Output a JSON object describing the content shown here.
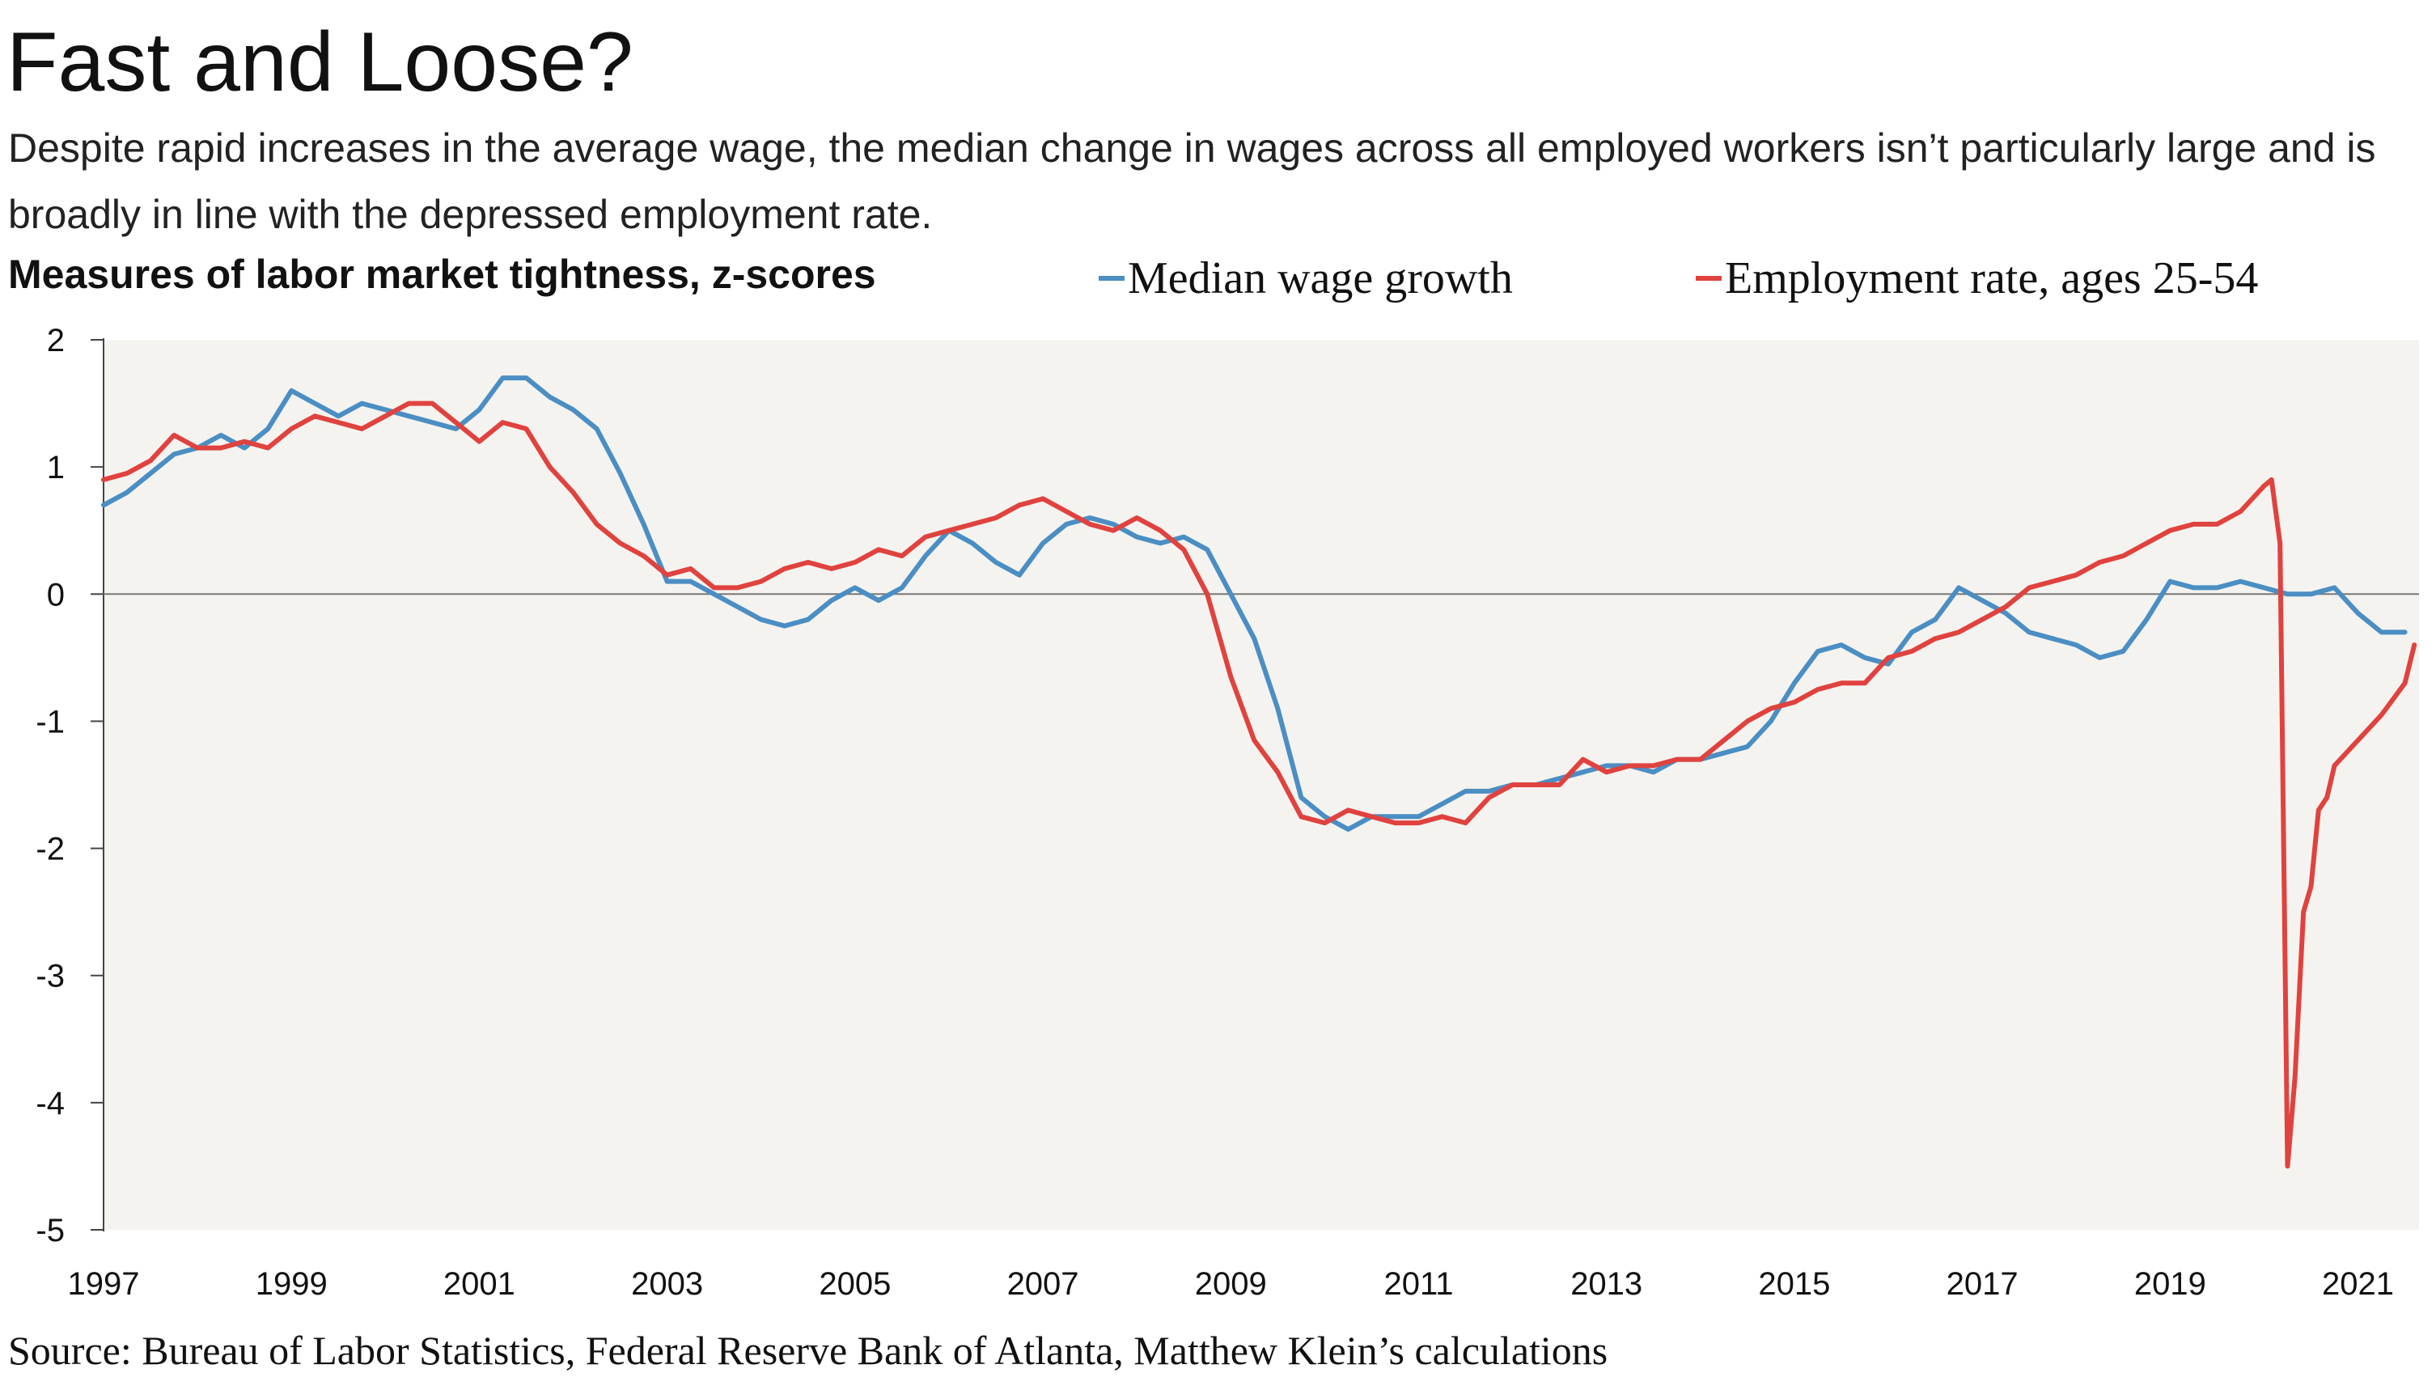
{
  "title": "Fast and Loose?",
  "subtitle": "Despite rapid increases in the average wage, the median change in wages across all employed workers isn’t particularly large and is broadly in line with the depressed employment rate.",
  "source": "Source: Bureau of Labor Statistics, Federal Reserve Bank of Atlanta, Matthew Klein’s calculations",
  "colors": {
    "plot_background": "#f5f3ef",
    "median_wage": "#4a8ec4",
    "employment": "#e0433f",
    "axis": "#444444"
  },
  "chart_data": {
    "type": "line",
    "title": "Measures of labor market tightness, z-scores",
    "xlabel": "",
    "ylabel": "",
    "xlim": [
      1997.0,
      2021.65
    ],
    "ylim": [
      -5,
      2
    ],
    "yticks": [
      2,
      1,
      0,
      -1,
      -2,
      -3,
      -4,
      -5
    ],
    "ytick_labels": [
      "2",
      "1",
      "0",
      "-1",
      "-2",
      "-3",
      "-4",
      "-5"
    ],
    "xticks": [
      1997,
      1999,
      2001,
      2003,
      2005,
      2007,
      2009,
      2011,
      2013,
      2015,
      2017,
      2019,
      2021
    ],
    "xtick_labels": [
      "1997",
      "1999",
      "2001",
      "2003",
      "2005",
      "2007",
      "2009",
      "2011",
      "2013",
      "2015",
      "2017",
      "2019",
      "2021"
    ],
    "grid": false,
    "legend": "top",
    "series": [
      {
        "name": "Median wage growth",
        "color": "#4a8ec4",
        "points": [
          [
            1997.0,
            0.7
          ],
          [
            1997.25,
            0.8
          ],
          [
            1997.5,
            0.95
          ],
          [
            1997.75,
            1.1
          ],
          [
            1998.0,
            1.15
          ],
          [
            1998.25,
            1.25
          ],
          [
            1998.5,
            1.15
          ],
          [
            1998.75,
            1.3
          ],
          [
            1999.0,
            1.6
          ],
          [
            1999.25,
            1.5
          ],
          [
            1999.5,
            1.4
          ],
          [
            1999.75,
            1.5
          ],
          [
            2000.0,
            1.45
          ],
          [
            2000.25,
            1.4
          ],
          [
            2000.5,
            1.35
          ],
          [
            2000.75,
            1.3
          ],
          [
            2001.0,
            1.45
          ],
          [
            2001.25,
            1.7
          ],
          [
            2001.5,
            1.7
          ],
          [
            2001.75,
            1.55
          ],
          [
            2002.0,
            1.45
          ],
          [
            2002.25,
            1.3
          ],
          [
            2002.5,
            0.95
          ],
          [
            2002.75,
            0.55
          ],
          [
            2003.0,
            0.1
          ],
          [
            2003.25,
            0.1
          ],
          [
            2003.5,
            0.0
          ],
          [
            2003.75,
            -0.1
          ],
          [
            2004.0,
            -0.2
          ],
          [
            2004.25,
            -0.25
          ],
          [
            2004.5,
            -0.2
          ],
          [
            2004.75,
            -0.05
          ],
          [
            2005.0,
            0.05
          ],
          [
            2005.25,
            -0.05
          ],
          [
            2005.5,
            0.05
          ],
          [
            2005.75,
            0.3
          ],
          [
            2006.0,
            0.5
          ],
          [
            2006.25,
            0.4
          ],
          [
            2006.5,
            0.25
          ],
          [
            2006.75,
            0.15
          ],
          [
            2007.0,
            0.4
          ],
          [
            2007.25,
            0.55
          ],
          [
            2007.5,
            0.6
          ],
          [
            2007.75,
            0.55
          ],
          [
            2008.0,
            0.45
          ],
          [
            2008.25,
            0.4
          ],
          [
            2008.5,
            0.45
          ],
          [
            2008.75,
            0.35
          ],
          [
            2009.0,
            0.0
          ],
          [
            2009.25,
            -0.35
          ],
          [
            2009.5,
            -0.9
          ],
          [
            2009.75,
            -1.6
          ],
          [
            2010.0,
            -1.75
          ],
          [
            2010.25,
            -1.85
          ],
          [
            2010.5,
            -1.75
          ],
          [
            2010.75,
            -1.75
          ],
          [
            2011.0,
            -1.75
          ],
          [
            2011.25,
            -1.65
          ],
          [
            2011.5,
            -1.55
          ],
          [
            2011.75,
            -1.55
          ],
          [
            2012.0,
            -1.5
          ],
          [
            2012.25,
            -1.5
          ],
          [
            2012.5,
            -1.45
          ],
          [
            2012.75,
            -1.4
          ],
          [
            2013.0,
            -1.35
          ],
          [
            2013.25,
            -1.35
          ],
          [
            2013.5,
            -1.4
          ],
          [
            2013.75,
            -1.3
          ],
          [
            2014.0,
            -1.3
          ],
          [
            2014.25,
            -1.25
          ],
          [
            2014.5,
            -1.2
          ],
          [
            2014.75,
            -1.0
          ],
          [
            2015.0,
            -0.7
          ],
          [
            2015.25,
            -0.45
          ],
          [
            2015.5,
            -0.4
          ],
          [
            2015.75,
            -0.5
          ],
          [
            2016.0,
            -0.55
          ],
          [
            2016.25,
            -0.3
          ],
          [
            2016.5,
            -0.2
          ],
          [
            2016.75,
            0.05
          ],
          [
            2017.0,
            -0.05
          ],
          [
            2017.25,
            -0.15
          ],
          [
            2017.5,
            -0.3
          ],
          [
            2017.75,
            -0.35
          ],
          [
            2018.0,
            -0.4
          ],
          [
            2018.25,
            -0.5
          ],
          [
            2018.5,
            -0.45
          ],
          [
            2018.75,
            -0.2
          ],
          [
            2019.0,
            0.1
          ],
          [
            2019.25,
            0.05
          ],
          [
            2019.5,
            0.05
          ],
          [
            2019.75,
            0.1
          ],
          [
            2020.0,
            0.05
          ],
          [
            2020.25,
            0.0
          ],
          [
            2020.5,
            0.0
          ],
          [
            2020.75,
            0.05
          ],
          [
            2021.0,
            -0.15
          ],
          [
            2021.25,
            -0.3
          ],
          [
            2021.5,
            -0.3
          ]
        ]
      },
      {
        "name": "Employment rate, ages 25-54",
        "color": "#e0433f",
        "points": [
          [
            1997.0,
            0.9
          ],
          [
            1997.25,
            0.95
          ],
          [
            1997.5,
            1.05
          ],
          [
            1997.75,
            1.25
          ],
          [
            1998.0,
            1.15
          ],
          [
            1998.25,
            1.15
          ],
          [
            1998.5,
            1.2
          ],
          [
            1998.75,
            1.15
          ],
          [
            1999.0,
            1.3
          ],
          [
            1999.25,
            1.4
          ],
          [
            1999.5,
            1.35
          ],
          [
            1999.75,
            1.3
          ],
          [
            2000.0,
            1.4
          ],
          [
            2000.25,
            1.5
          ],
          [
            2000.5,
            1.5
          ],
          [
            2000.75,
            1.35
          ],
          [
            2001.0,
            1.2
          ],
          [
            2001.25,
            1.35
          ],
          [
            2001.5,
            1.3
          ],
          [
            2001.75,
            1.0
          ],
          [
            2002.0,
            0.8
          ],
          [
            2002.25,
            0.55
          ],
          [
            2002.5,
            0.4
          ],
          [
            2002.75,
            0.3
          ],
          [
            2003.0,
            0.15
          ],
          [
            2003.25,
            0.2
          ],
          [
            2003.5,
            0.05
          ],
          [
            2003.75,
            0.05
          ],
          [
            2004.0,
            0.1
          ],
          [
            2004.25,
            0.2
          ],
          [
            2004.5,
            0.25
          ],
          [
            2004.75,
            0.2
          ],
          [
            2005.0,
            0.25
          ],
          [
            2005.25,
            0.35
          ],
          [
            2005.5,
            0.3
          ],
          [
            2005.75,
            0.45
          ],
          [
            2006.0,
            0.5
          ],
          [
            2006.25,
            0.55
          ],
          [
            2006.5,
            0.6
          ],
          [
            2006.75,
            0.7
          ],
          [
            2007.0,
            0.75
          ],
          [
            2007.25,
            0.65
          ],
          [
            2007.5,
            0.55
          ],
          [
            2007.75,
            0.5
          ],
          [
            2008.0,
            0.6
          ],
          [
            2008.25,
            0.5
          ],
          [
            2008.5,
            0.35
          ],
          [
            2008.75,
            0.0
          ],
          [
            2009.0,
            -0.65
          ],
          [
            2009.25,
            -1.15
          ],
          [
            2009.5,
            -1.4
          ],
          [
            2009.75,
            -1.75
          ],
          [
            2010.0,
            -1.8
          ],
          [
            2010.25,
            -1.7
          ],
          [
            2010.5,
            -1.75
          ],
          [
            2010.75,
            -1.8
          ],
          [
            2011.0,
            -1.8
          ],
          [
            2011.25,
            -1.75
          ],
          [
            2011.5,
            -1.8
          ],
          [
            2011.75,
            -1.6
          ],
          [
            2012.0,
            -1.5
          ],
          [
            2012.25,
            -1.5
          ],
          [
            2012.5,
            -1.5
          ],
          [
            2012.75,
            -1.3
          ],
          [
            2013.0,
            -1.4
          ],
          [
            2013.25,
            -1.35
          ],
          [
            2013.5,
            -1.35
          ],
          [
            2013.75,
            -1.3
          ],
          [
            2014.0,
            -1.3
          ],
          [
            2014.25,
            -1.15
          ],
          [
            2014.5,
            -1.0
          ],
          [
            2014.75,
            -0.9
          ],
          [
            2015.0,
            -0.85
          ],
          [
            2015.25,
            -0.75
          ],
          [
            2015.5,
            -0.7
          ],
          [
            2015.75,
            -0.7
          ],
          [
            2016.0,
            -0.5
          ],
          [
            2016.25,
            -0.45
          ],
          [
            2016.5,
            -0.35
          ],
          [
            2016.75,
            -0.3
          ],
          [
            2017.0,
            -0.2
          ],
          [
            2017.25,
            -0.1
          ],
          [
            2017.5,
            0.05
          ],
          [
            2017.75,
            0.1
          ],
          [
            2018.0,
            0.15
          ],
          [
            2018.25,
            0.25
          ],
          [
            2018.5,
            0.3
          ],
          [
            2018.75,
            0.4
          ],
          [
            2019.0,
            0.5
          ],
          [
            2019.25,
            0.55
          ],
          [
            2019.5,
            0.55
          ],
          [
            2019.75,
            0.65
          ],
          [
            2020.0,
            0.85
          ],
          [
            2020.08,
            0.9
          ],
          [
            2020.17,
            0.4
          ],
          [
            2020.25,
            -4.5
          ],
          [
            2020.33,
            -3.8
          ],
          [
            2020.42,
            -2.5
          ],
          [
            2020.5,
            -2.3
          ],
          [
            2020.58,
            -1.7
          ],
          [
            2020.67,
            -1.6
          ],
          [
            2020.75,
            -1.35
          ],
          [
            2021.0,
            -1.15
          ],
          [
            2021.25,
            -0.95
          ],
          [
            2021.5,
            -0.7
          ],
          [
            2021.6,
            -0.4
          ]
        ]
      }
    ]
  }
}
